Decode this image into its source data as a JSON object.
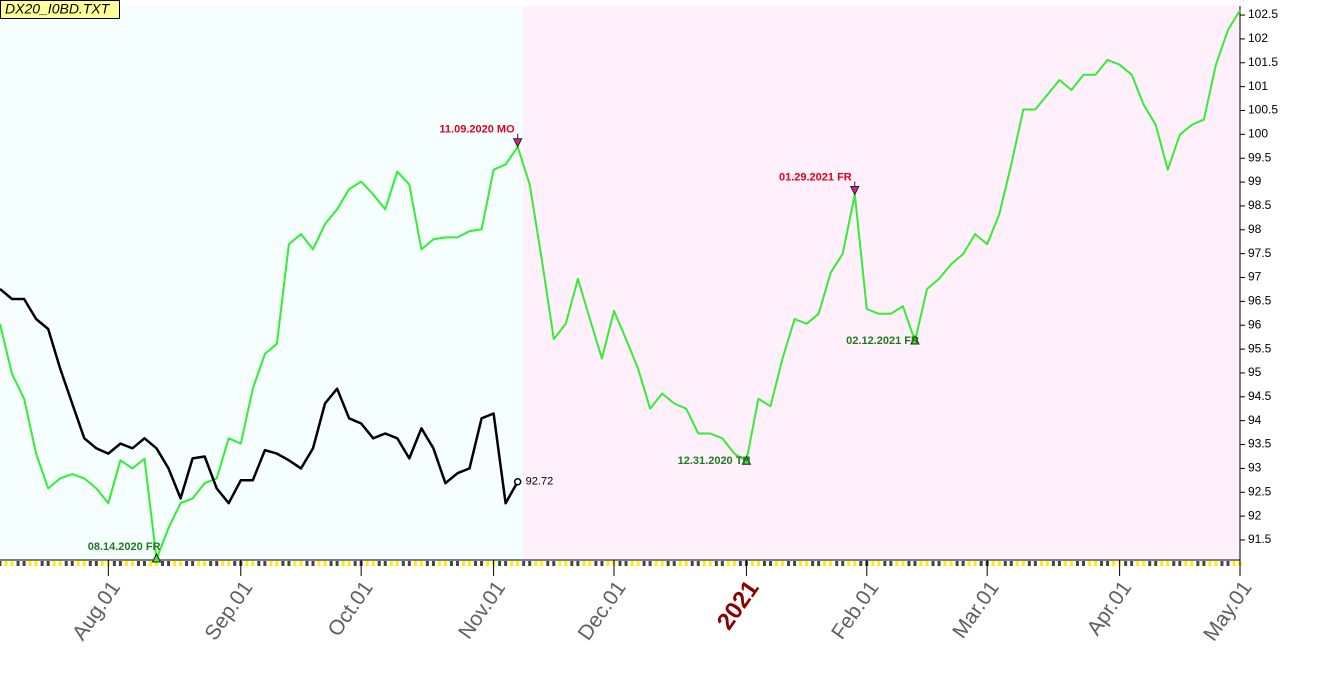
{
  "chart_data": {
    "type": "line",
    "title": "DX20_I0BD.TXT",
    "categories": [
      null,
      null,
      null,
      null,
      null,
      null,
      null,
      null,
      null,
      "Aug.01",
      null,
      null,
      null,
      null,
      null,
      null,
      null,
      null,
      null,
      null,
      "Sep.01",
      null,
      null,
      null,
      null,
      null,
      null,
      null,
      null,
      null,
      "Oct.01",
      null,
      null,
      null,
      null,
      null,
      null,
      null,
      null,
      null,
      null,
      "Nov.01",
      null,
      null,
      null,
      null,
      null,
      null,
      null,
      null,
      null,
      "Dec.01",
      null,
      null,
      null,
      null,
      null,
      null,
      null,
      null,
      null,
      null,
      "2021",
      null,
      null,
      null,
      null,
      null,
      null,
      null,
      null,
      null,
      "Feb.01",
      null,
      null,
      null,
      null,
      null,
      null,
      null,
      null,
      null,
      "Mar.01",
      null,
      null,
      null,
      null,
      null,
      null,
      null,
      null,
      null,
      null,
      "Apr.01",
      null,
      null,
      null,
      null,
      null,
      null,
      null,
      null,
      null,
      "May.01"
    ],
    "series": [
      {
        "color": "#33ee33",
        "values": [
          96.03,
          94.98,
          94.46,
          93.31,
          92.58,
          92.79,
          92.88,
          92.79,
          92.58,
          92.27,
          93.17,
          93.0,
          93.2,
          91.1,
          91.75,
          92.27,
          92.37,
          92.69,
          92.79,
          93.63,
          93.52,
          94.67,
          95.4,
          95.61,
          97.7,
          97.91,
          97.59,
          98.12,
          98.43,
          98.85,
          99.01,
          98.74,
          98.43,
          99.22,
          98.95,
          97.59,
          97.8,
          97.84,
          97.84,
          97.97,
          98.01,
          99.26,
          99.37,
          99.74,
          98.95,
          97.39,
          95.71,
          96.03,
          96.97,
          96.13,
          95.3,
          96.3,
          95.71,
          95.09,
          94.25,
          94.57,
          94.36,
          94.25,
          93.73,
          93.73,
          93.63,
          93.31,
          93.15,
          94.46,
          94.3,
          95.3,
          96.13,
          96.03,
          96.24,
          97.1,
          97.5,
          98.74,
          96.34,
          96.24,
          96.24,
          96.4,
          95.67,
          96.76,
          96.97,
          97.28,
          97.49,
          97.91,
          97.7,
          98.32,
          99.37,
          100.52,
          100.52,
          100.83,
          101.14,
          100.93,
          101.25,
          101.25,
          101.56,
          101.46,
          101.25,
          100.62,
          100.2,
          99.26,
          99.99,
          100.2,
          100.31,
          101.46,
          102.19,
          102.6
        ]
      },
      {
        "color": "#000000",
        "values": [
          96.76,
          96.55,
          96.55,
          96.13,
          95.92,
          95.09,
          94.36,
          93.63,
          93.42,
          93.31,
          93.52,
          93.42,
          93.63,
          93.42,
          93.0,
          92.37,
          93.21,
          93.25,
          92.58,
          92.27,
          92.75,
          92.75,
          93.38,
          93.31,
          93.17,
          93.0,
          93.42,
          94.36,
          94.67,
          94.05,
          93.94,
          93.63,
          93.73,
          93.63,
          93.21,
          93.84,
          93.42,
          92.69,
          92.9,
          93.0,
          94.05,
          94.15,
          92.27,
          92.72,
          null,
          null,
          null,
          null,
          null,
          null,
          null,
          null,
          null,
          null,
          null,
          null,
          null,
          null,
          null,
          null,
          null,
          null,
          null,
          null,
          null,
          null,
          null,
          null,
          null,
          null,
          null,
          null,
          null,
          null,
          null,
          null,
          null,
          null,
          null,
          null,
          null,
          null,
          null,
          null,
          null,
          null,
          null,
          null,
          null,
          null,
          null,
          null,
          null,
          null,
          null,
          null,
          null,
          null,
          null,
          null,
          null,
          null,
          null,
          null
        ]
      }
    ],
    "annotations": [
      {
        "text": "08.14.2020 FR",
        "color": "#1f7a1f",
        "marker": "low"
      },
      {
        "text": "11.09.2020 MO",
        "color": "#e0001b",
        "marker": "high"
      },
      {
        "text": "12.31.2020 TH",
        "color": "#1f7a1f",
        "marker": "low"
      },
      {
        "text": "01.29.2021 FR",
        "color": "#e0001b",
        "marker": "high"
      },
      {
        "text": "02.12.2021 FR",
        "color": "#1f7a1f",
        "marker": "low"
      }
    ],
    "ylim": [
      91.08,
      102.69
    ],
    "yticks": [
      91.5,
      92,
      92.5,
      93,
      93.5,
      94,
      94.5,
      95,
      95.5,
      96,
      96.5,
      97,
      97.5,
      98,
      98.5,
      99,
      99.5,
      100,
      100.5,
      101,
      101.5,
      102,
      102.5
    ]
  }
}
